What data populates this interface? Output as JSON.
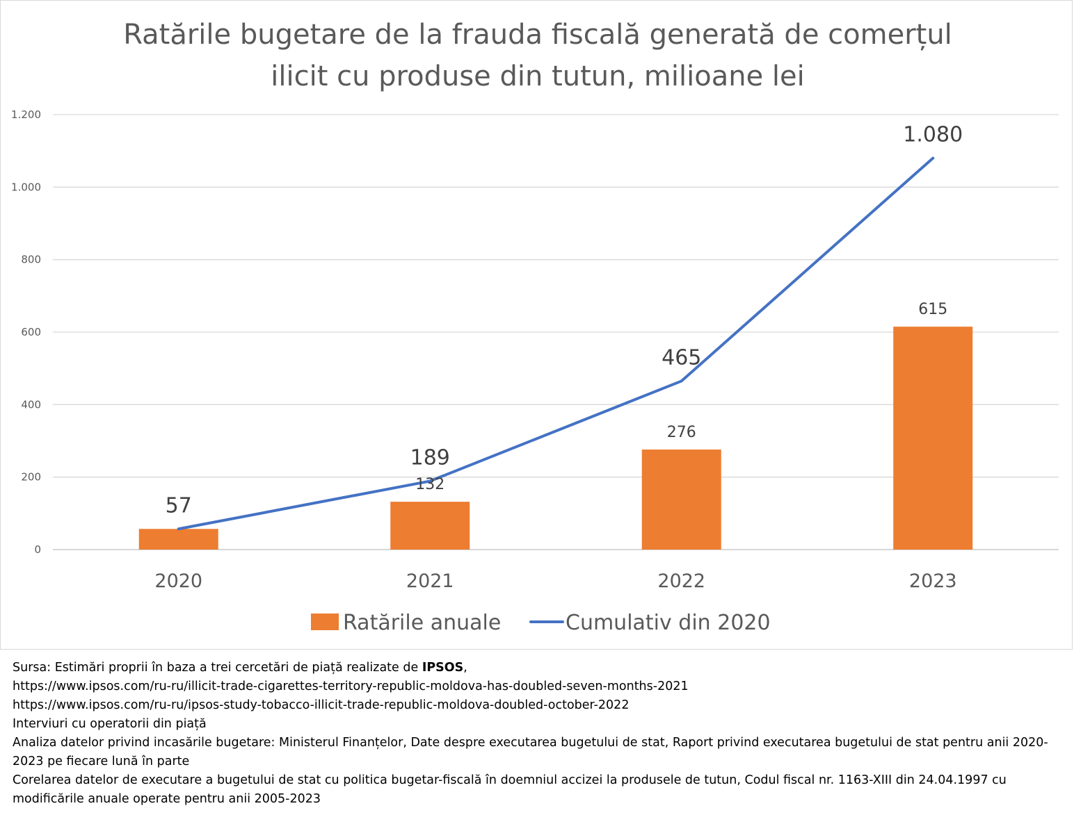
{
  "chart_data": {
    "type": "bar",
    "title": "Ratările bugetare de la frauda fiscală generată de comerțul ilicit cu produse din tutun, milioane lei",
    "title_lines": [
      "Ratările bugetare de la frauda fiscală generată de comerțul",
      "ilicit cu produse din tutun, milioane lei"
    ],
    "categories": [
      "2020",
      "2021",
      "2022",
      "2023"
    ],
    "series": [
      {
        "name": "Ratările anuale",
        "kind": "bar",
        "color": "#ED7D31",
        "values": [
          57,
          132,
          276,
          615
        ],
        "labels": [
          "",
          "132",
          "276",
          "615"
        ]
      },
      {
        "name": "Cumulativ din 2020",
        "kind": "line",
        "color": "#4472C4",
        "values": [
          57,
          189,
          465,
          1080
        ],
        "labels": [
          "57",
          "189",
          "465",
          "1.080"
        ]
      }
    ],
    "ylim": [
      0,
      1200
    ],
    "yticks": [
      0,
      200,
      400,
      600,
      800,
      1000,
      1200
    ],
    "ytick_labels": [
      "0",
      "200",
      "400",
      "600",
      "800",
      "1.000",
      "1.200"
    ],
    "grid": true,
    "legend_position": "bottom"
  },
  "source": {
    "line1_prefix": "Sursa: Estimări proprii în baza a trei cercetări de piață realizate de ",
    "line1_bold": "IPSOS",
    "line1_suffix": ",",
    "url1": "https://www.ipsos.com/ru-ru/illicit-trade-cigarettes-territory-republic-moldova-has-doubled-seven-months-2021",
    "url2": "https://www.ipsos.com/ru-ru/ipsos-study-tobacco-illicit-trade-republic-moldova-doubled-october-2022",
    "interviews": "Interviuri cu operatorii din piață",
    "analysis": "Analiza datelor privind incasările bugetare: Ministerul Finanțelor, Date despre executarea bugetului de stat, Raport privind executarea bugetului de stat pentru anii 2020-2023 pe fiecare lună în parte",
    "correlation": "Corelarea datelor de executare a bugetului de stat cu politica bugetar-fiscală în doemniul accizei la produsele de tutun, Codul fiscal nr. 1163-XIII din  24.04.1997 cu modificările anuale operate pentru  anii 2005-2023"
  }
}
